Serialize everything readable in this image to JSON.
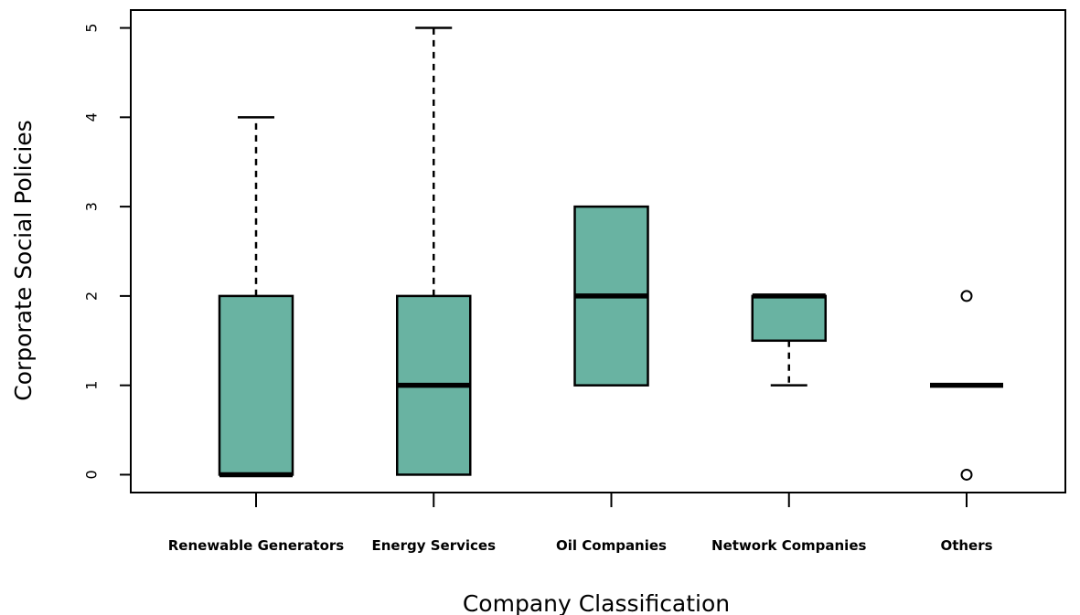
{
  "chart_data": {
    "type": "box",
    "xlabel": "Company Classification",
    "ylabel": "Corporate Social Policies",
    "ylim": [
      -0.2,
      5.2
    ],
    "yticks": [
      0,
      1,
      2,
      3,
      4,
      5
    ],
    "box_color": "#69b3a2",
    "categories": [
      "Renewable Generators",
      "Energy Services",
      "Oil Companies",
      "Network Companies",
      "Others"
    ],
    "boxes": [
      {
        "q1": 0,
        "median": 0,
        "q3": 2,
        "whisker_low": 0,
        "whisker_high": 4,
        "outliers": []
      },
      {
        "q1": 0,
        "median": 1,
        "q3": 2,
        "whisker_low": 0,
        "whisker_high": 5,
        "outliers": []
      },
      {
        "q1": 1,
        "median": 2,
        "q3": 3,
        "whisker_low": 1,
        "whisker_high": 3,
        "outliers": []
      },
      {
        "q1": 1.5,
        "median": 2,
        "q3": 2,
        "whisker_low": 1,
        "whisker_high": 2,
        "outliers": []
      },
      {
        "q1": 1,
        "median": 1,
        "q3": 1,
        "whisker_low": 1,
        "whisker_high": 1,
        "outliers": [
          0,
          2
        ]
      }
    ]
  }
}
